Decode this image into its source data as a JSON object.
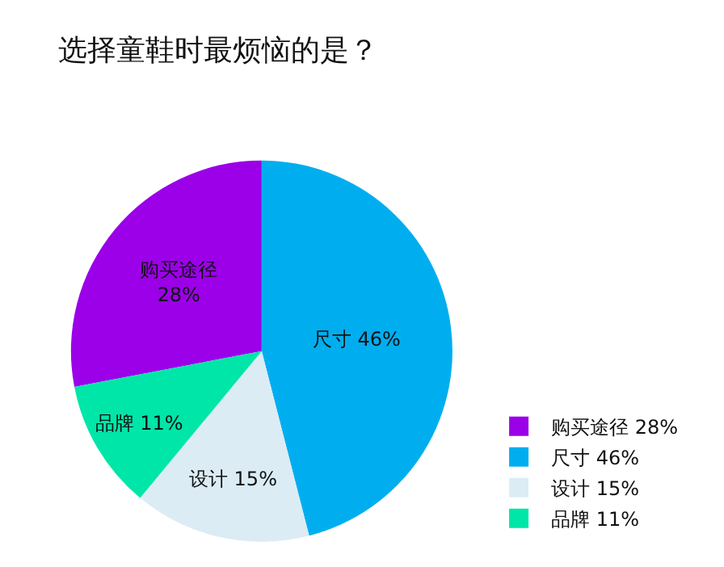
{
  "chart_data": {
    "type": "pie",
    "title": "选择童鞋时最烦恼的是？",
    "categories": [
      "购买途径",
      "尺寸",
      "设计",
      "品牌"
    ],
    "values": [
      28,
      46,
      15,
      11
    ],
    "colors": [
      "#9b00e8",
      "#00aeef",
      "#dcecf4",
      "#00e6a8"
    ],
    "value_labels": [
      "28%",
      "46%",
      "15%",
      "11%"
    ],
    "legend": "bottom right"
  }
}
